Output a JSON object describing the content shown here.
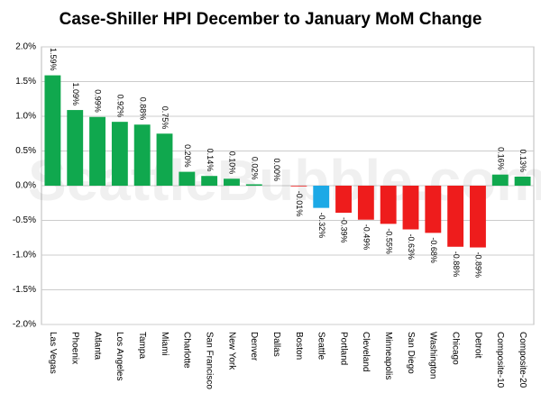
{
  "chart_data": {
    "type": "bar",
    "title": "Case-Shiller HPI December to January MoM Change",
    "watermark": "SeattleBubble.com",
    "categories": [
      "Las Vegas",
      "Phoenix",
      "Atlanta",
      "Los Angeles",
      "Tampa",
      "Miami",
      "Charlotte",
      "San Francisco",
      "New York",
      "Denver",
      "Dallas",
      "Boston",
      "Seattle",
      "Portland",
      "Cleveland",
      "Minneapolis",
      "San Diego",
      "Washington",
      "Chicago",
      "Detroit",
      "Composite-10",
      "Composite-20"
    ],
    "values": [
      1.59,
      1.09,
      0.99,
      0.92,
      0.88,
      0.75,
      0.2,
      0.14,
      0.1,
      0.02,
      0.0,
      -0.01,
      -0.32,
      -0.39,
      -0.49,
      -0.55,
      -0.63,
      -0.68,
      -0.88,
      -0.89,
      0.16,
      0.13
    ],
    "value_labels": [
      "1.59%",
      "1.09%",
      "0.99%",
      "0.92%",
      "0.88%",
      "0.75%",
      "0.20%",
      "0.14%",
      "0.10%",
      "0.02%",
      "0.00%",
      "-0.01%",
      "-0.32%",
      "-0.39%",
      "-0.49%",
      "-0.55%",
      "-0.63%",
      "-0.68%",
      "-0.88%",
      "-0.89%",
      "0.16%",
      "0.13%"
    ],
    "colors": [
      "#10a84e",
      "#10a84e",
      "#10a84e",
      "#10a84e",
      "#10a84e",
      "#10a84e",
      "#10a84e",
      "#10a84e",
      "#10a84e",
      "#10a84e",
      "#10a84e",
      "#ee1c1c",
      "#1ca9e6",
      "#ee1c1c",
      "#ee1c1c",
      "#ee1c1c",
      "#ee1c1c",
      "#ee1c1c",
      "#ee1c1c",
      "#ee1c1c",
      "#10a84e",
      "#10a84e"
    ],
    "ylim": [
      -2,
      2
    ],
    "yticks": [
      {
        "value": -2,
        "label": "-2.0%"
      },
      {
        "value": -1.5,
        "label": "-1.5%"
      },
      {
        "value": -1,
        "label": "-1.0%"
      },
      {
        "value": -0.5,
        "label": "-0.5%"
      },
      {
        "value": 0,
        "label": "0.0%"
      },
      {
        "value": 0.5,
        "label": "0.5%"
      },
      {
        "value": 1,
        "label": "1.0%"
      },
      {
        "value": 1.5,
        "label": "1.5%"
      },
      {
        "value": 2,
        "label": "2.0%"
      }
    ],
    "grid": true
  }
}
